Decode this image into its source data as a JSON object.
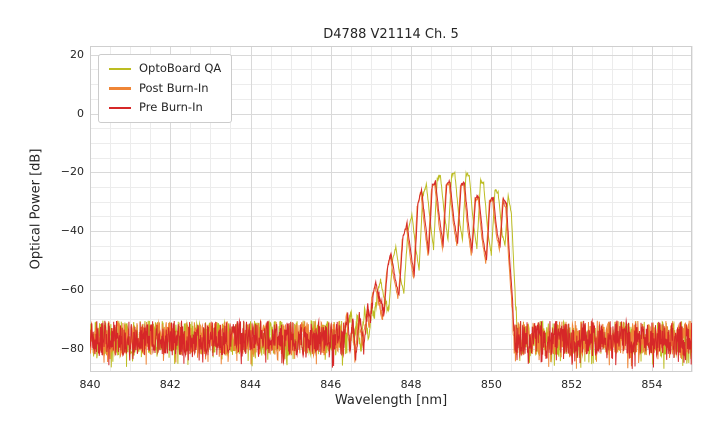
{
  "chart_data": {
    "type": "line",
    "title": "D4788 V21114 Ch. 5",
    "xlabel": "Wavelength [nm]",
    "ylabel": "Optical Power [dB]",
    "xlim": [
      840,
      855
    ],
    "ylim": [
      -88,
      23
    ],
    "x_ticks": [
      {
        "v": 840,
        "label": "840"
      },
      {
        "v": 842,
        "label": "842"
      },
      {
        "v": 844,
        "label": "844"
      },
      {
        "v": 846,
        "label": "846"
      },
      {
        "v": 848,
        "label": "848"
      },
      {
        "v": 850,
        "label": "850"
      },
      {
        "v": 852,
        "label": "852"
      },
      {
        "v": 854,
        "label": "854"
      }
    ],
    "y_ticks": [
      {
        "v": 20,
        "label": "20"
      },
      {
        "v": 0,
        "label": "0"
      },
      {
        "v": -20,
        "label": "−20"
      },
      {
        "v": -40,
        "label": "−40"
      },
      {
        "v": -60,
        "label": "−60"
      },
      {
        "v": -80,
        "label": "−80"
      }
    ],
    "x_minor_step": 0.5,
    "y_minor_step": 5,
    "grid": true,
    "legend_position": "upper-left",
    "noise_floor": {
      "mean_db": -76.5,
      "max_db": -70.5,
      "min_db": -87
    },
    "series": [
      {
        "name": "OptoBoard QA",
        "color": "#bcbd22",
        "envelope": [
          [
            846.4,
            -73
          ],
          [
            846.5,
            -68
          ],
          [
            846.58,
            -79
          ],
          [
            846.66,
            -68
          ],
          [
            846.74,
            -82
          ],
          [
            846.84,
            -67
          ],
          [
            846.94,
            -78
          ],
          [
            847.02,
            -66
          ],
          [
            847.08,
            -70
          ],
          [
            847.16,
            -61
          ],
          [
            847.24,
            -56.5
          ],
          [
            847.34,
            -64
          ],
          [
            847.44,
            -67
          ],
          [
            847.54,
            -50
          ],
          [
            847.62,
            -45.5
          ],
          [
            847.72,
            -55
          ],
          [
            847.82,
            -61
          ],
          [
            847.92,
            -40
          ],
          [
            848.02,
            -34.5
          ],
          [
            848.12,
            -46
          ],
          [
            848.2,
            -53
          ],
          [
            848.29,
            -28
          ],
          [
            848.38,
            -24.2
          ],
          [
            848.48,
            -37
          ],
          [
            848.56,
            -46
          ],
          [
            848.65,
            -22.3
          ],
          [
            848.73,
            -21.2
          ],
          [
            848.83,
            -34
          ],
          [
            848.92,
            -43
          ],
          [
            849.01,
            -20.9
          ],
          [
            849.09,
            -20.3
          ],
          [
            849.19,
            -35
          ],
          [
            849.28,
            -43
          ],
          [
            849.37,
            -20.6
          ],
          [
            849.45,
            -20.9
          ],
          [
            849.55,
            -37
          ],
          [
            849.64,
            -46
          ],
          [
            849.73,
            -23.2
          ],
          [
            849.81,
            -24.0
          ],
          [
            849.91,
            -40
          ],
          [
            850.0,
            -48
          ],
          [
            850.09,
            -26.3
          ],
          [
            850.17,
            -26.9
          ],
          [
            850.27,
            -41
          ],
          [
            850.34,
            -45
          ],
          [
            850.42,
            -28.0
          ],
          [
            850.5,
            -34
          ],
          [
            850.56,
            -52
          ],
          [
            850.62,
            -68
          ],
          [
            850.66,
            -78
          ]
        ]
      },
      {
        "name": "Post Burn-In",
        "color": "#ef8536",
        "envelope": [
          [
            846.33,
            -74
          ],
          [
            846.4,
            -70
          ],
          [
            846.47,
            -81
          ],
          [
            846.54,
            -71
          ],
          [
            846.6,
            -83
          ],
          [
            846.7,
            -69
          ],
          [
            846.8,
            -79
          ],
          [
            846.9,
            -67
          ],
          [
            846.97,
            -72
          ],
          [
            847.03,
            -63
          ],
          [
            847.1,
            -58.5
          ],
          [
            847.2,
            -65
          ],
          [
            847.3,
            -69
          ],
          [
            847.4,
            -53
          ],
          [
            847.48,
            -48.5
          ],
          [
            847.58,
            -57
          ],
          [
            847.68,
            -63
          ],
          [
            847.78,
            -43
          ],
          [
            847.88,
            -38.5
          ],
          [
            847.98,
            -49
          ],
          [
            848.06,
            -56
          ],
          [
            848.15,
            -32
          ],
          [
            848.24,
            -26.6
          ],
          [
            848.34,
            -39
          ],
          [
            848.42,
            -48
          ],
          [
            848.51,
            -25.3
          ],
          [
            848.59,
            -24.0
          ],
          [
            848.69,
            -37
          ],
          [
            848.78,
            -46
          ],
          [
            848.87,
            -24.6
          ],
          [
            848.95,
            -23.9
          ],
          [
            849.05,
            -37
          ],
          [
            849.14,
            -45
          ],
          [
            849.23,
            -25.0
          ],
          [
            849.31,
            -24.4
          ],
          [
            849.41,
            -39
          ],
          [
            849.5,
            -48
          ],
          [
            849.59,
            -29.4
          ],
          [
            849.67,
            -28.9
          ],
          [
            849.77,
            -43
          ],
          [
            849.86,
            -51
          ],
          [
            849.95,
            -30.2
          ],
          [
            850.03,
            -29.4
          ],
          [
            850.13,
            -42
          ],
          [
            850.2,
            -46
          ],
          [
            850.28,
            -30.1
          ],
          [
            850.36,
            -32
          ],
          [
            850.43,
            -49
          ],
          [
            850.5,
            -63
          ],
          [
            850.56,
            -77
          ]
        ]
      },
      {
        "name": "Pre Burn-In",
        "color": "#d62728",
        "envelope": [
          [
            846.35,
            -74
          ],
          [
            846.42,
            -69
          ],
          [
            846.48,
            -80
          ],
          [
            846.55,
            -70
          ],
          [
            846.62,
            -84
          ],
          [
            846.72,
            -68
          ],
          [
            846.82,
            -80
          ],
          [
            846.92,
            -66
          ],
          [
            846.98,
            -71
          ],
          [
            847.05,
            -62
          ],
          [
            847.12,
            -57.5
          ],
          [
            847.22,
            -64
          ],
          [
            847.32,
            -68
          ],
          [
            847.42,
            -52
          ],
          [
            847.5,
            -47.5
          ],
          [
            847.6,
            -56
          ],
          [
            847.7,
            -62
          ],
          [
            847.8,
            -42
          ],
          [
            847.9,
            -37.5
          ],
          [
            848.0,
            -48
          ],
          [
            848.08,
            -55
          ],
          [
            848.17,
            -31
          ],
          [
            848.26,
            -25.8
          ],
          [
            848.36,
            -38
          ],
          [
            848.44,
            -47
          ],
          [
            848.53,
            -24.5
          ],
          [
            848.61,
            -23.2
          ],
          [
            848.71,
            -36
          ],
          [
            848.8,
            -45
          ],
          [
            848.89,
            -23.8
          ],
          [
            848.97,
            -23.1
          ],
          [
            849.07,
            -36
          ],
          [
            849.16,
            -44
          ],
          [
            849.25,
            -24.2
          ],
          [
            849.33,
            -23.6
          ],
          [
            849.43,
            -38
          ],
          [
            849.52,
            -47
          ],
          [
            849.61,
            -28.6
          ],
          [
            849.69,
            -28.1
          ],
          [
            849.79,
            -42
          ],
          [
            849.88,
            -50
          ],
          [
            849.97,
            -29.4
          ],
          [
            850.05,
            -28.6
          ],
          [
            850.15,
            -41
          ],
          [
            850.22,
            -45
          ],
          [
            850.3,
            -29.3
          ],
          [
            850.38,
            -31
          ],
          [
            850.45,
            -48
          ],
          [
            850.52,
            -62
          ],
          [
            850.58,
            -76
          ]
        ]
      }
    ]
  }
}
